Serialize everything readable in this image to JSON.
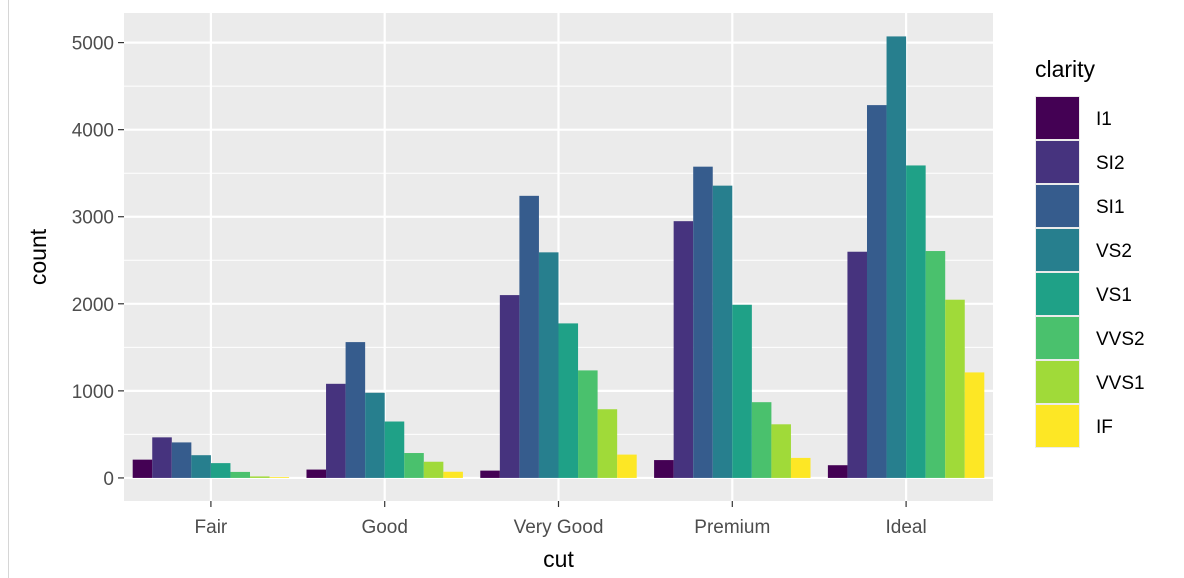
{
  "chart_data": {
    "type": "bar",
    "title": "",
    "xlabel": "cut",
    "ylabel": "count",
    "ylim": [
      0,
      5300
    ],
    "yticks": [
      0,
      1000,
      2000,
      3000,
      4000,
      5000
    ],
    "ytick_labels": [
      "0",
      "1000",
      "2000",
      "3000",
      "4000",
      "5000"
    ],
    "categories": [
      "Fair",
      "Good",
      "Very Good",
      "Premium",
      "Ideal"
    ],
    "legend_title": "clarity",
    "series": [
      {
        "name": "I1",
        "color": "#440154",
        "values": [
          210,
          96,
          84,
          205,
          146
        ]
      },
      {
        "name": "SI2",
        "color": "#46337E",
        "values": [
          466,
          1081,
          2100,
          2949,
          2598
        ]
      },
      {
        "name": "SI1",
        "color": "#365C8D",
        "values": [
          408,
          1560,
          3240,
          3575,
          4282
        ]
      },
      {
        "name": "VS2",
        "color": "#277F8E",
        "values": [
          261,
          978,
          2591,
          3357,
          5071
        ]
      },
      {
        "name": "VS1",
        "color": "#1FA187",
        "values": [
          170,
          648,
          1775,
          1989,
          3589
        ]
      },
      {
        "name": "VVS2",
        "color": "#4AC16D",
        "values": [
          69,
          286,
          1235,
          870,
          2606
        ]
      },
      {
        "name": "VVS1",
        "color": "#A0DA39",
        "values": [
          17,
          186,
          789,
          616,
          2047
        ]
      },
      {
        "name": "IF",
        "color": "#FDE725",
        "values": [
          9,
          71,
          268,
          230,
          1212
        ]
      }
    ]
  }
}
